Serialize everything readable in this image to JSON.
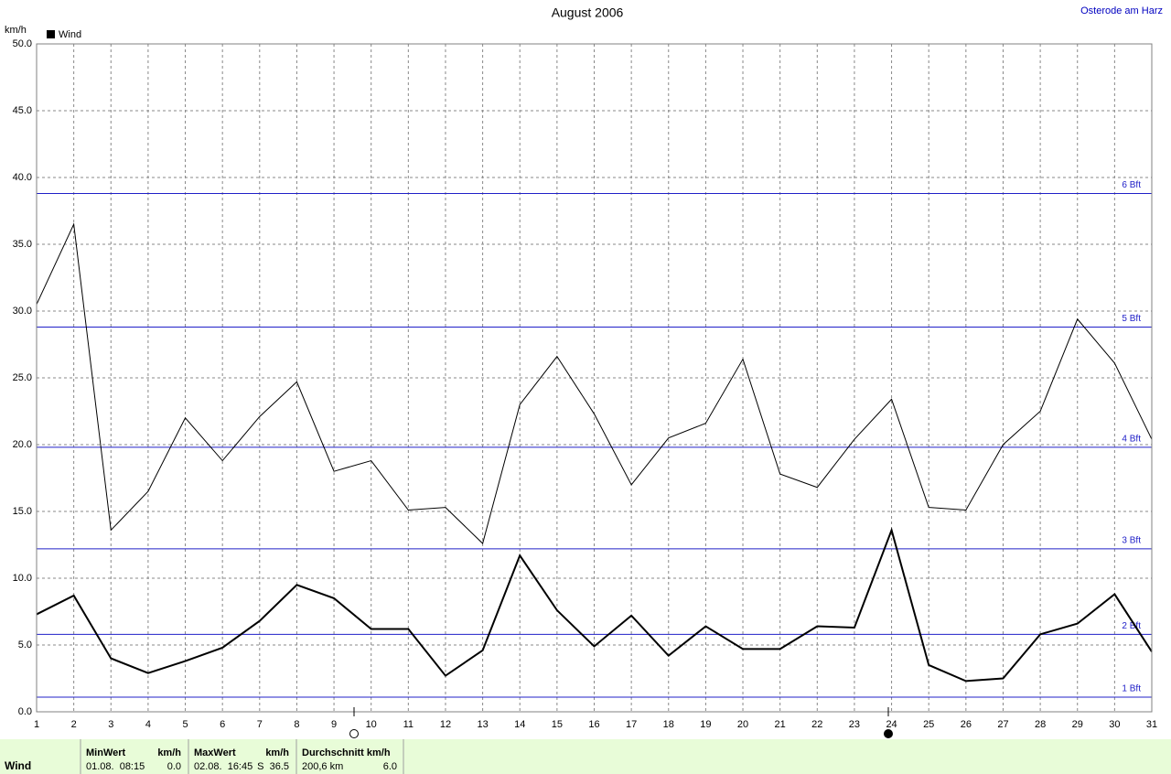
{
  "location": "Osterode am Harz",
  "chart_data": {
    "type": "line",
    "title": "August 2006",
    "y_unit": "km/h",
    "x": [
      1,
      2,
      3,
      4,
      5,
      6,
      7,
      8,
      9,
      10,
      11,
      12,
      13,
      14,
      15,
      16,
      17,
      18,
      19,
      20,
      21,
      22,
      23,
      24,
      25,
      26,
      27,
      28,
      29,
      30,
      31
    ],
    "xlim": [
      1,
      31
    ],
    "ylim": [
      0,
      50
    ],
    "yticks": [
      {
        "value": 0,
        "label": "0.0"
      },
      {
        "value": 5,
        "label": "5.0"
      },
      {
        "value": 10,
        "label": "10.0"
      },
      {
        "value": 15,
        "label": "15.0"
      },
      {
        "value": 20,
        "label": "20.0"
      },
      {
        "value": 25,
        "label": "25.0"
      },
      {
        "value": 30,
        "label": "30.0"
      },
      {
        "value": 35,
        "label": "35.0"
      },
      {
        "value": 40,
        "label": "40.0"
      },
      {
        "value": 45,
        "label": "45.0"
      },
      {
        "value": 50,
        "label": "50.0"
      }
    ],
    "grid": true,
    "series": [
      {
        "name": "Wind",
        "color": "#000000",
        "values": [
          7.3,
          8.7,
          4.0,
          2.9,
          3.8,
          4.8,
          6.8,
          9.5,
          8.5,
          6.2,
          6.2,
          2.7,
          4.6,
          11.7,
          7.6,
          4.9,
          7.2,
          4.2,
          6.4,
          4.7,
          4.7,
          6.4,
          6.3,
          13.6,
          3.5,
          2.3,
          2.5,
          5.8,
          6.6,
          8.8,
          4.5
        ]
      },
      {
        "color": "#000000",
        "values": [
          30.5,
          36.5,
          13.6,
          16.5,
          22.0,
          18.8,
          22.1,
          24.7,
          18.0,
          18.8,
          15.1,
          15.3,
          12.6,
          23.0,
          26.6,
          22.3,
          17.0,
          20.5,
          21.6,
          26.4,
          17.8,
          16.8,
          20.4,
          23.4,
          15.3,
          15.1,
          20.0,
          22.5,
          29.4,
          26.1,
          20.4
        ]
      }
    ],
    "reference_color": "#2020c8",
    "reference_lines": [
      {
        "label": "1 Bft",
        "value": 1.1
      },
      {
        "label": "2 Bft",
        "value": 5.8
      },
      {
        "label": "3 Bft",
        "value": 12.2
      },
      {
        "label": "4 Bft",
        "value": 19.8
      },
      {
        "label": "5 Bft",
        "value": 28.8
      },
      {
        "label": "6 Bft",
        "value": 38.8
      }
    ]
  },
  "stats": {
    "label": "Wind",
    "min": {
      "header": "MinWert",
      "unit": "km/h",
      "time": "01.08.  08:15",
      "value": "0.0"
    },
    "max": {
      "header": "MaxWert",
      "unit": "km/h",
      "time": "02.08.  16:45",
      "value": "S  36.5"
    },
    "avg": {
      "header": "Durchschnitt km/h",
      "distance": "200,6 km",
      "value": "6.0"
    }
  }
}
